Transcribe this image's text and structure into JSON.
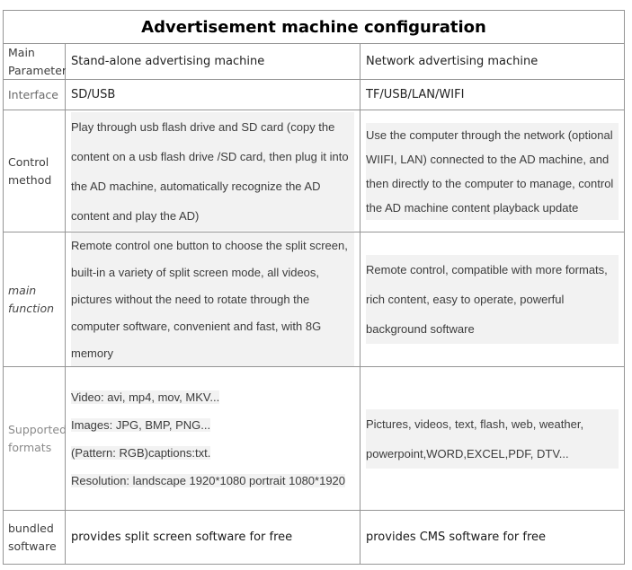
{
  "title": "Advertisement machine configuration",
  "colors": {
    "border": "#959595",
    "title_text": "#000000",
    "label_gray": "#8a8a8a",
    "body_text": "#3c3c3c",
    "line_highlight": "#f2f2f2"
  },
  "table": {
    "rows": [
      {
        "label": "Main Parameter",
        "standalone": "Stand-alone advertising machine",
        "network": "Network advertising machine"
      },
      {
        "label": "Interface",
        "standalone": "SD/USB",
        "network": "TF/USB/LAN/WIFI"
      },
      {
        "label": "Control method",
        "standalone": "Play through usb flash drive and SD card (copy the content on a usb flash drive /SD card, then plug it into the AD machine, automatically recognize the AD content and play the AD)",
        "network": "Use the computer through the network (optional WIIFI, LAN) connected to the AD machine, and then directly to the computer to manage, control the AD machine content playback update"
      },
      {
        "label": "main function",
        "standalone": "Remote control one button to choose the split screen, built-in a variety of split screen mode, all videos, pictures without the need to rotate through the computer software, convenient and fast, with 8G memory",
        "network": "Remote control, compatible with more formats, rich content, easy to operate, powerful background software"
      },
      {
        "label": "Supported formats",
        "standalone_lines": [
          "Video: avi, mp4, mov, MKV...",
          "Images: JPG, BMP, PNG...",
          "(Pattern: RGB)captions:txt.",
          "Resolution: landscape 1920*1080 portrait 1080*1920"
        ],
        "network": "Pictures, videos, text, flash, web, weather, powerpoint,WORD,EXCEL,PDF, DTV..."
      },
      {
        "label": "bundled software",
        "standalone": "provides split screen software for free",
        "network": "provides CMS software for free"
      }
    ]
  }
}
